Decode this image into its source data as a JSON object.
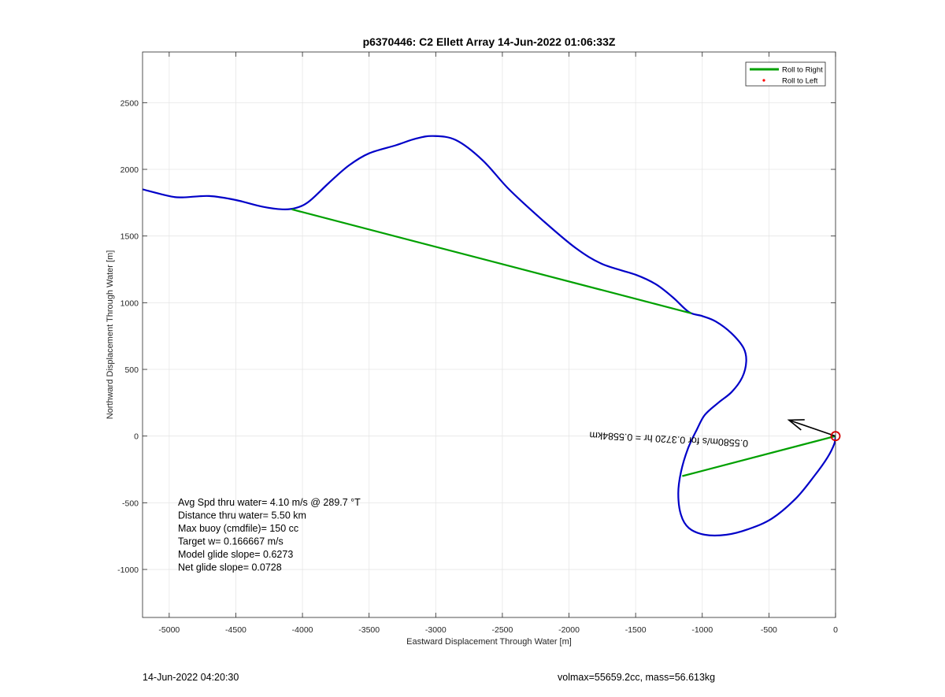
{
  "footer": {
    "left": "14-Jun-2022 04:20:30",
    "right": "volmax=55659.2cc, mass=56.613kg"
  },
  "chart_data": {
    "type": "line",
    "title": "p6370446: C2 Ellett Array 14-Jun-2022 01:06:33Z",
    "xlabel": "Eastward Displacement Through Water [m]",
    "ylabel": "Northward Displacement Through Water [m]",
    "xlim": [
      -5200,
      0
    ],
    "ylim": [
      -1360,
      2880
    ],
    "xticks": [
      -5000,
      -4500,
      -4000,
      -3500,
      -3000,
      -2500,
      -2000,
      -1500,
      -1000,
      -500,
      0
    ],
    "yticks": [
      -1000,
      -500,
      0,
      500,
      1000,
      1500,
      2000,
      2500
    ],
    "grid": true,
    "legend_position": "top-right",
    "legend": [
      {
        "label": "Roll to Right",
        "color": "#00a000",
        "marker": "line"
      },
      {
        "label": "Roll to Left",
        "color": "#ff0000",
        "marker": "dot"
      }
    ],
    "track": {
      "color": "#0000c8",
      "x": [
        -5200,
        -5000,
        -4900,
        -4700,
        -4500,
        -4300,
        -4150,
        -4050,
        -3950,
        -3800,
        -3650,
        -3500,
        -3300,
        -3150,
        -3020,
        -2850,
        -2650,
        -2450,
        -2200,
        -1950,
        -1750,
        -1500,
        -1350,
        -1220,
        -1100,
        -1000,
        -900,
        -780,
        -690,
        -670,
        -700,
        -780,
        -880,
        -980,
        -1040,
        -1110,
        -1160,
        -1180,
        -1160,
        -1100,
        -980,
        -820,
        -660,
        -480,
        -300,
        -160,
        -60,
        -10,
        0
      ],
      "y": [
        1850,
        1800,
        1790,
        1800,
        1770,
        1720,
        1700,
        1710,
        1760,
        1900,
        2030,
        2120,
        2180,
        2230,
        2250,
        2220,
        2070,
        1850,
        1620,
        1410,
        1290,
        1210,
        1140,
        1040,
        930,
        900,
        860,
        770,
        660,
        560,
        440,
        330,
        250,
        160,
        50,
        -100,
        -270,
        -430,
        -590,
        -690,
        -740,
        -740,
        -700,
        -620,
        -470,
        -300,
        -160,
        -60,
        0
      ]
    },
    "roll_right_segments": [
      {
        "x": [
          -4080,
          -1080
        ],
        "y": [
          1700,
          920
        ]
      },
      {
        "x": [
          -1150,
          0
        ],
        "y": [
          -300,
          0
        ]
      }
    ],
    "current_arrow": {
      "x": [
        0,
        -350
      ],
      "y": [
        0,
        120
      ],
      "color": "#000000"
    },
    "end_marker": {
      "x": 0,
      "y": 0,
      "color": "#d40000"
    },
    "rotated_label": {
      "text": "0.5580m/s for 0.3720 hr = 0.5584km",
      "x": -1250,
      "y": 0,
      "angle_deg": 183
    },
    "annotations": [
      "Avg Spd thru water=  4.10 m/s @ 289.7 °T",
      "Distance thru water=  5.50 km",
      "Max buoy (cmdfile)= 150 cc",
      "Target w= 0.166667 m/s",
      "Model glide slope= 0.6273",
      "Net glide slope= 0.0728"
    ]
  }
}
